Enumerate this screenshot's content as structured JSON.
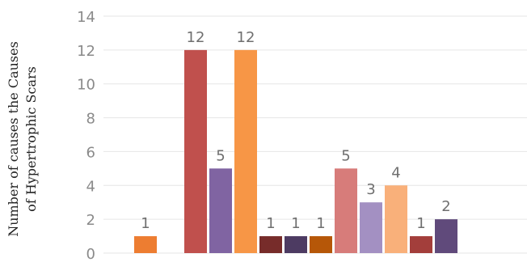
{
  "chart_data": {
    "type": "bar",
    "title": "",
    "xlabel": "",
    "ylabel_lines": [
      "Number of causes the Causes",
      "of Hypertrophic Scars"
    ],
    "ylim": [
      0,
      14
    ],
    "yticks": [
      0,
      2,
      4,
      6,
      8,
      10,
      12,
      14
    ],
    "grid": true,
    "bars": [
      {
        "value": 1,
        "label": "1",
        "color": "#ed7d31"
      },
      {
        "value": null,
        "label": "",
        "color": "#ffffff"
      },
      {
        "value": 12,
        "label": "12",
        "color": "#c0504d"
      },
      {
        "value": 5,
        "label": "5",
        "color": "#8064a2"
      },
      {
        "value": 12,
        "label": "12",
        "color": "#f79646"
      },
      {
        "value": 1,
        "label": "1",
        "color": "#772c2a"
      },
      {
        "value": 1,
        "label": "1",
        "color": "#4d3b62"
      },
      {
        "value": 1,
        "label": "1",
        "color": "#b65708"
      },
      {
        "value": 5,
        "label": "5",
        "color": "#d77c7a"
      },
      {
        "value": 3,
        "label": "3",
        "color": "#a390c2"
      },
      {
        "value": 4,
        "label": "4",
        "color": "#f9b07a"
      },
      {
        "value": 1,
        "label": "1",
        "color": "#a33e3b"
      },
      {
        "value": 2,
        "label": "2",
        "color": "#604a7b"
      }
    ]
  }
}
